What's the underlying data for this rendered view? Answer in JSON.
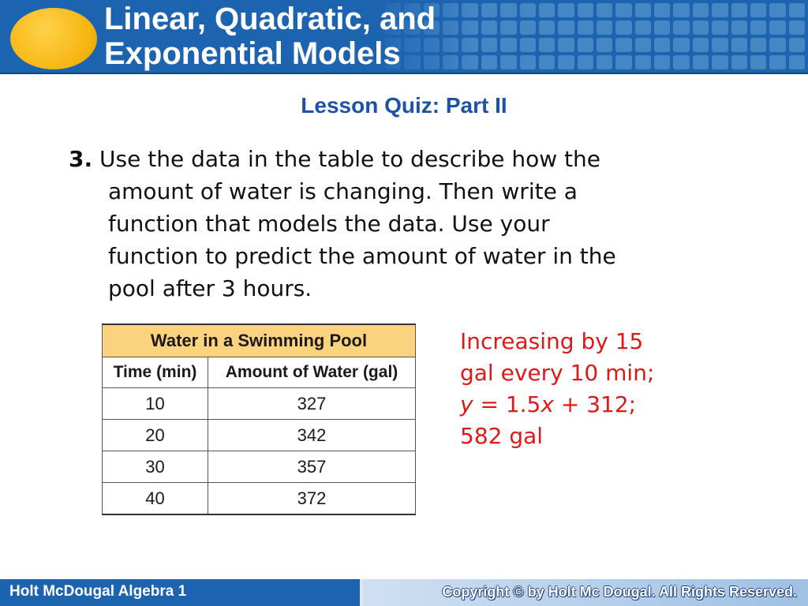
{
  "header": {
    "title_line1": "Linear, Quadratic, and",
    "title_line2": "Exponential Models"
  },
  "subtitle": "Lesson Quiz: Part II",
  "question": {
    "number": "3.",
    "line1": "Use the data in the table to describe how the",
    "line2": "amount of water is changing. Then write a",
    "line3": "function that models the data. Use your",
    "line4": "function to predict the amount of water in the",
    "line5": "pool after 3 hours."
  },
  "table": {
    "caption": "Water in a Swimming Pool",
    "columns": [
      "Time (min)",
      "Amount of Water (gal)"
    ],
    "rows": [
      [
        "10",
        "327"
      ],
      [
        "20",
        "342"
      ],
      [
        "30",
        "357"
      ],
      [
        "40",
        "372"
      ]
    ]
  },
  "answer": {
    "line1": "Increasing by 15",
    "line2": "gal every 10 min;",
    "line3_y": "y",
    "line3_mid": " = 1.5",
    "line3_x": "x",
    "line3_end": " + 312;",
    "line4": "582 gal"
  },
  "footer": {
    "left": "Holt McDougal Algebra 1",
    "right": "Copyright © by Holt Mc Dougal. All Rights Reserved."
  },
  "colors": {
    "banner_blue": "#1d64b0",
    "subtitle_blue": "#1c53a6",
    "answer_red": "#e01818",
    "table_caption_fill": "#fbd37f",
    "logo_yellow": "#f6b40e"
  }
}
